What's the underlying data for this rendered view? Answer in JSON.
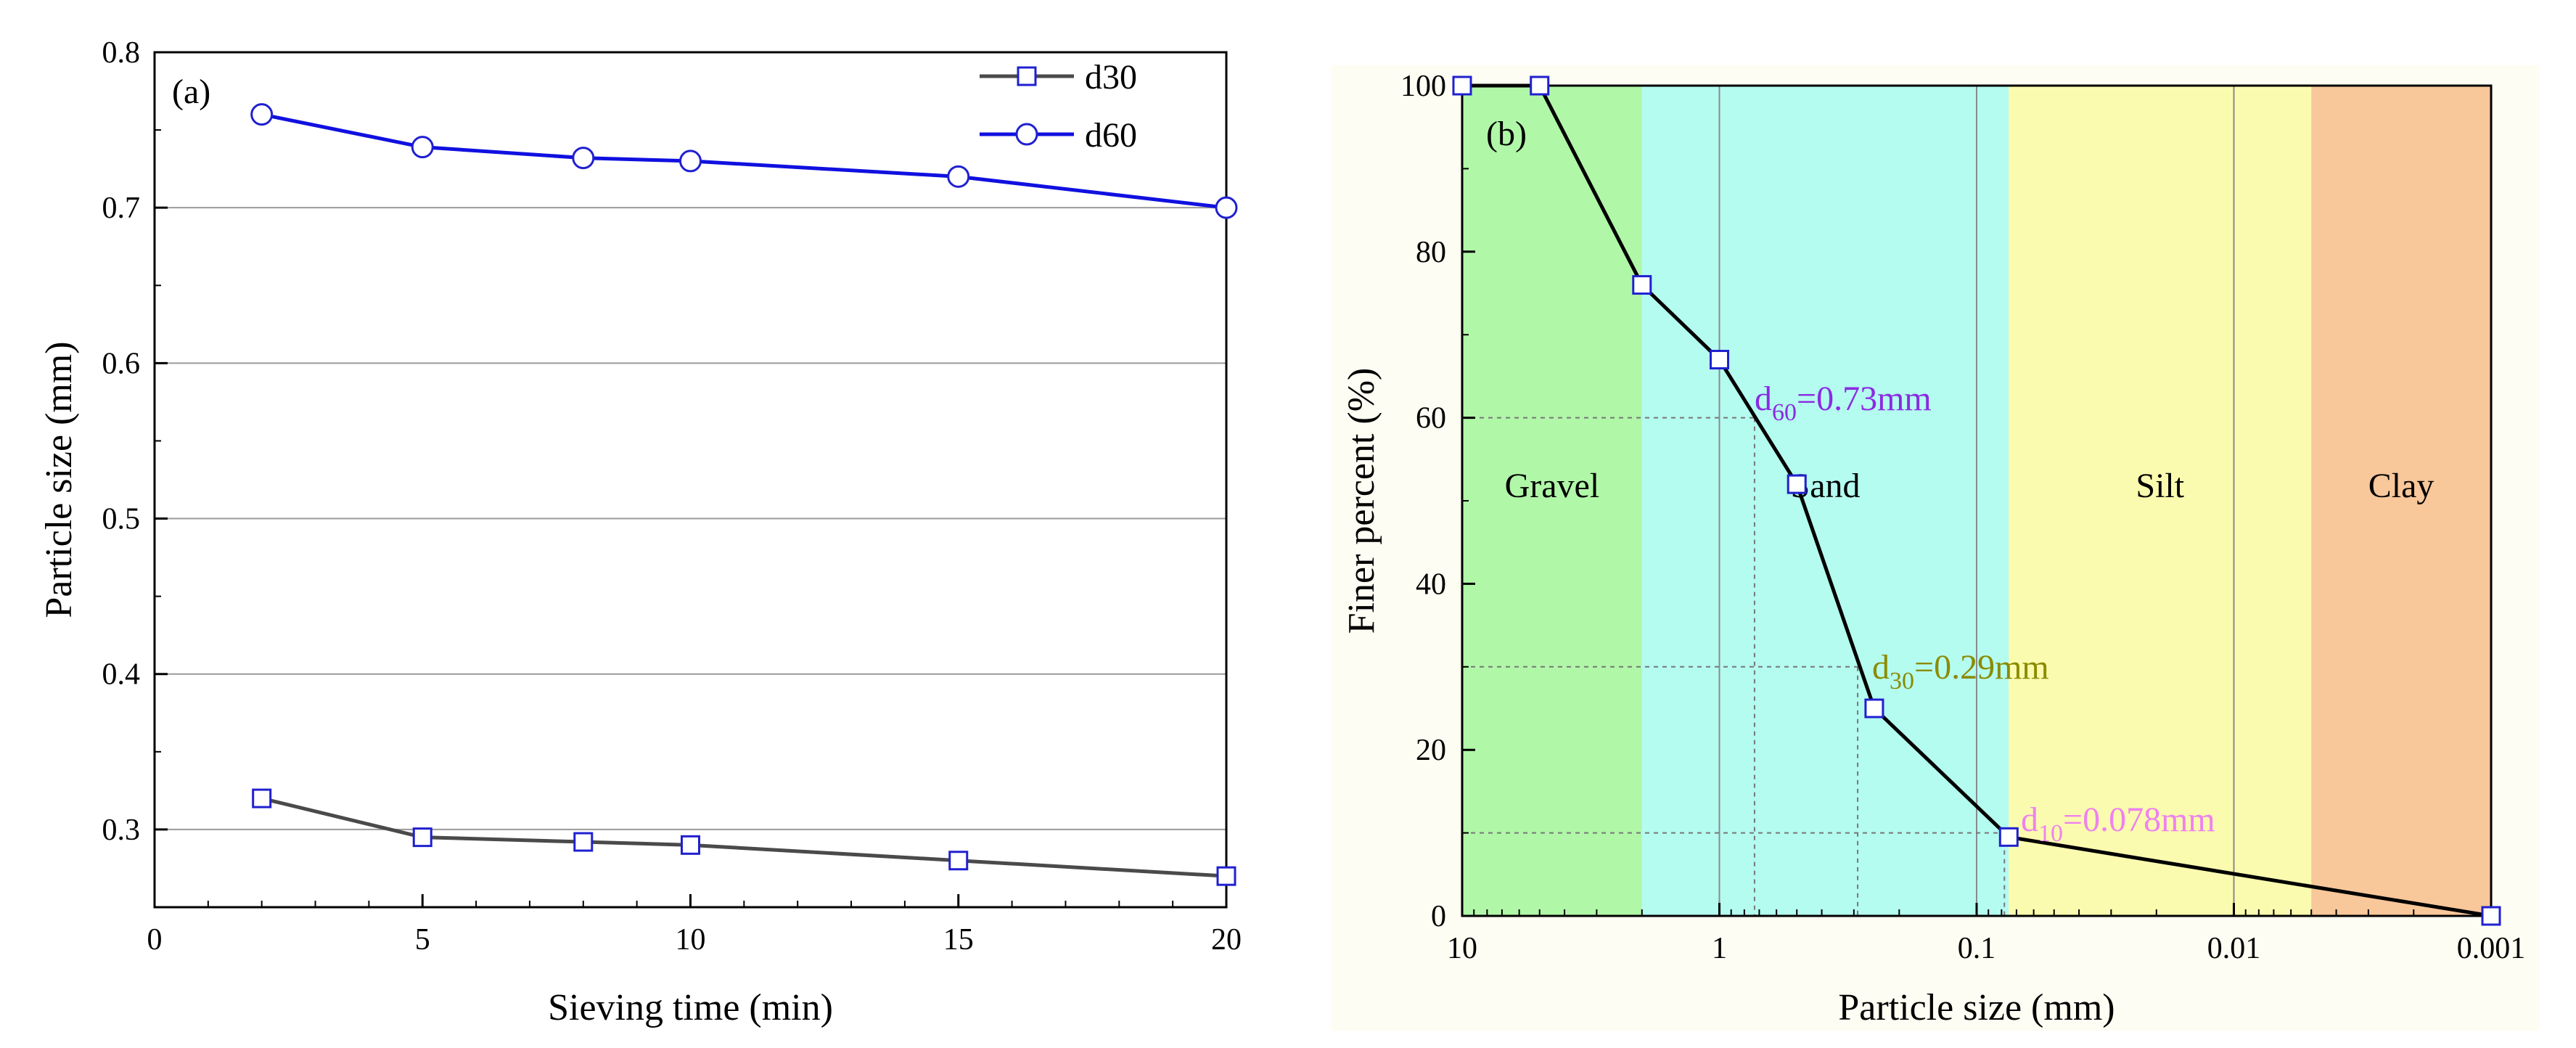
{
  "chart_data": [
    {
      "type": "line",
      "panel_label": "(a)",
      "xlabel": "Sieving time (min)",
      "ylabel": "Particle size (mm)",
      "xlim": [
        0,
        20
      ],
      "ylim": [
        0.25,
        0.8
      ],
      "xticks": [
        0,
        5,
        10,
        15,
        20
      ],
      "yticks": [
        0.3,
        0.4,
        0.5,
        0.6,
        0.7,
        0.8
      ],
      "grid": "horizontal",
      "legend": "top-right",
      "x": [
        2,
        5,
        8,
        10,
        15,
        20
      ],
      "series": [
        {
          "name": "d30",
          "marker": "square",
          "color": "#4a4a4a",
          "values": [
            0.32,
            0.295,
            0.292,
            0.29,
            0.28,
            0.27
          ]
        },
        {
          "name": "d60",
          "marker": "circle",
          "color": "#1010e0",
          "values": [
            0.76,
            0.739,
            0.732,
            0.73,
            0.72,
            0.7
          ]
        }
      ]
    },
    {
      "type": "line",
      "panel_label": "(b)",
      "xlabel": "Particle size (mm)",
      "ylabel": "Finer percent (%)",
      "xscale": "log-reversed",
      "xlim": [
        10,
        0.001
      ],
      "ylim": [
        0,
        100
      ],
      "xticks": [
        "10",
        "1",
        "0.1",
        "0.01",
        "0.001"
      ],
      "yticks": [
        0,
        20,
        40,
        60,
        80,
        100
      ],
      "grid": "vertical",
      "series": [
        {
          "name": "",
          "marker": "square",
          "color": "#000000",
          "x": [
            10,
            5,
            2,
            1,
            0.5,
            0.25,
            0.075,
            0.001
          ],
          "values": [
            100,
            100,
            76,
            67,
            52,
            25,
            9.5,
            0
          ]
        }
      ],
      "regions": [
        {
          "label": "Gravel",
          "from": 10,
          "to": 2,
          "color": "#b0f7a8"
        },
        {
          "label": "Sand",
          "from": 2,
          "to": 0.075,
          "color": "#b4fbf0"
        },
        {
          "label": "Silt",
          "from": 0.075,
          "to": 0.005,
          "color": "#fbfbaf"
        },
        {
          "label": "Clay",
          "from": 0.005,
          "to": 0.001,
          "color": "#f8c79a"
        }
      ],
      "annotations": [
        {
          "sub": "60",
          "rest": "=0.73mm",
          "x": 0.73,
          "y": 60,
          "color": "#8a2be2"
        },
        {
          "sub": "30",
          "rest": "=0.29mm",
          "x": 0.29,
          "y": 30,
          "color": "#8b8b00"
        },
        {
          "sub": "10",
          "rest": "=0.078mm",
          "x": 0.078,
          "y": 10,
          "color": "#ee82ee"
        }
      ]
    }
  ]
}
